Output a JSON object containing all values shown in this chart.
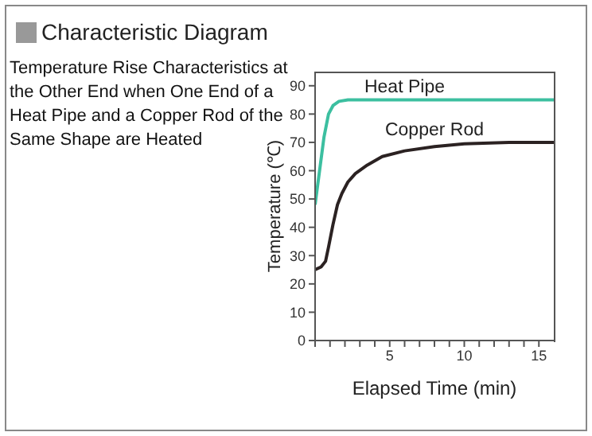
{
  "chart_data": {
    "type": "line",
    "title": "Characteristic Diagram",
    "subtitle": "Temperature Rise Characteristics at the Other End when One End of a Heat Pipe and a Copper Rod of the Same Shape are Heated",
    "xlabel": "Elapsed Time (min)",
    "ylabel": "Temperature (℃)",
    "xlim": [
      0,
      16
    ],
    "ylim": [
      0,
      95
    ],
    "xticks": [
      {
        "value": 0,
        "label": null
      },
      {
        "value": 1,
        "label": null
      },
      {
        "value": 2,
        "label": null
      },
      {
        "value": 3,
        "label": null
      },
      {
        "value": 4,
        "label": null
      },
      5,
      {
        "value": 6,
        "label": null
      },
      {
        "value": 7,
        "label": null
      },
      {
        "value": 8,
        "label": null
      },
      {
        "value": 9,
        "label": null
      },
      10,
      {
        "value": 11,
        "label": null
      },
      {
        "value": 12,
        "label": null
      },
      {
        "value": 13,
        "label": null
      },
      {
        "value": 14,
        "label": null
      },
      15
    ],
    "yticks": [
      0,
      10,
      20,
      30,
      40,
      50,
      60,
      70,
      80,
      90
    ],
    "grid": false,
    "legend": false,
    "marker": "none",
    "line_style": "solid",
    "series": [
      {
        "name": "Heat Pipe",
        "color": "#3cbfa0",
        "x": [
          0,
          0.3,
          0.6,
          0.9,
          1.2,
          1.6,
          2.2,
          3,
          6,
          10,
          16
        ],
        "values": [
          48,
          60,
          72,
          80,
          83,
          84.5,
          85,
          85,
          85,
          85,
          85
        ]
      },
      {
        "name": "Copper Rod",
        "color": "#2b2222",
        "x": [
          0,
          0.4,
          0.7,
          0.9,
          1.2,
          1.5,
          1.8,
          2.2,
          2.7,
          3.5,
          4.5,
          6,
          8,
          10,
          13,
          16
        ],
        "values": [
          25,
          26,
          28,
          33,
          41,
          48,
          52,
          56,
          59,
          62,
          65,
          67,
          68.5,
          69.5,
          70,
          70
        ]
      }
    ]
  }
}
